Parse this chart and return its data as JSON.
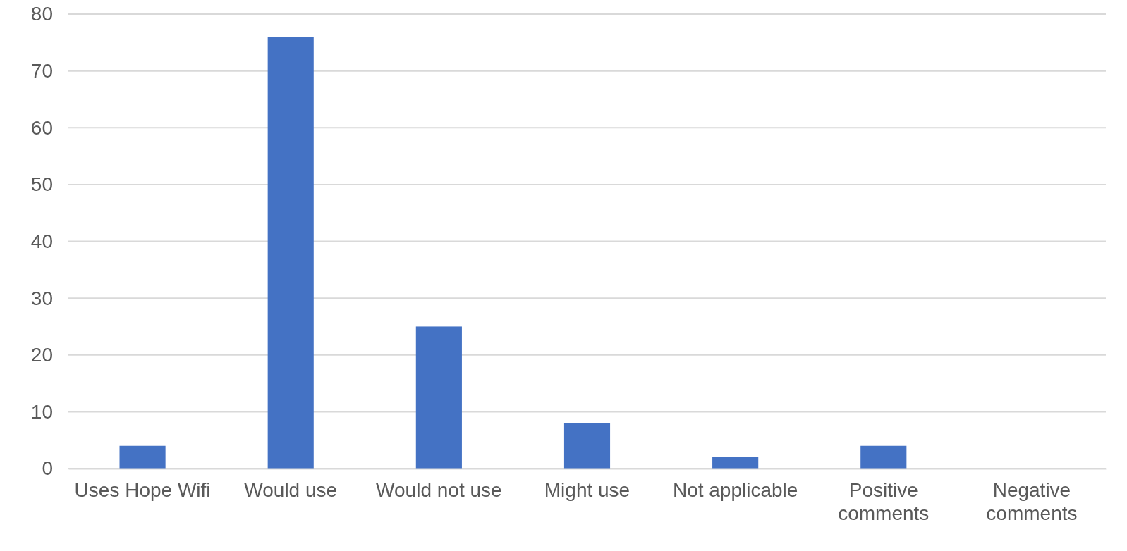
{
  "chart_data": {
    "type": "bar",
    "categories": [
      "Uses Hope Wifi",
      "Would use",
      "Would not use",
      "Might use",
      "Not applicable",
      "Positive comments",
      "Negative comments"
    ],
    "values": [
      4,
      76,
      25,
      8,
      2,
      4,
      0
    ],
    "color": "#4472c4",
    "ylim": [
      0,
      80
    ],
    "yticks": [
      0,
      10,
      20,
      30,
      40,
      50,
      60,
      70,
      80
    ],
    "grid": "y"
  }
}
